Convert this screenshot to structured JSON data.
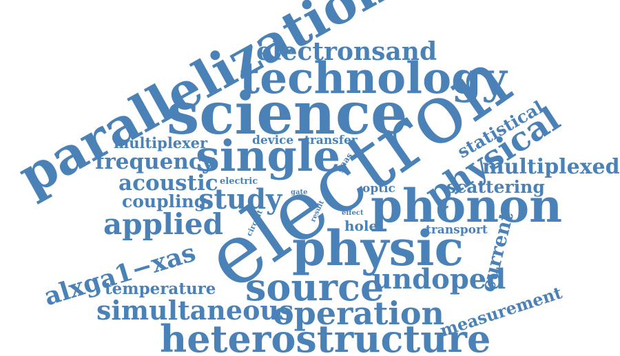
{
  "colors": {
    "word": "#4a82b8",
    "background": "#ffffff"
  },
  "words": {
    "electron": "electron",
    "parallelization": "parallelization",
    "science": "science",
    "technology": "technology",
    "heterostructure": "heterostructure",
    "physic": "physic",
    "phonon": "phonon",
    "single": "single",
    "source": "source",
    "operation": "operation",
    "simultaneous": "simultaneous",
    "physical": "physical",
    "electronsand": "electronsand",
    "applied": "applied",
    "alxga1xas": "alxga1−xas",
    "study": "study",
    "undoped": "undoped",
    "multiplexed": "multiplexed",
    "frequency": "frequency",
    "acoustic": "acoustic",
    "coupling": "coupling",
    "scattering": "scattering",
    "multiplexer": "multiplexer",
    "statistical": "statistical",
    "current": "current",
    "measurement": "measurement",
    "temperature": "temperature",
    "device": "device",
    "transfer": "transfer",
    "hole": "hole",
    "transport": "transport",
    "optic": "optic",
    "gaas": "gaas",
    "electric": "electric",
    "gate": "gate",
    "circuit": "circuit",
    "result": "result",
    "effect": "effect"
  }
}
